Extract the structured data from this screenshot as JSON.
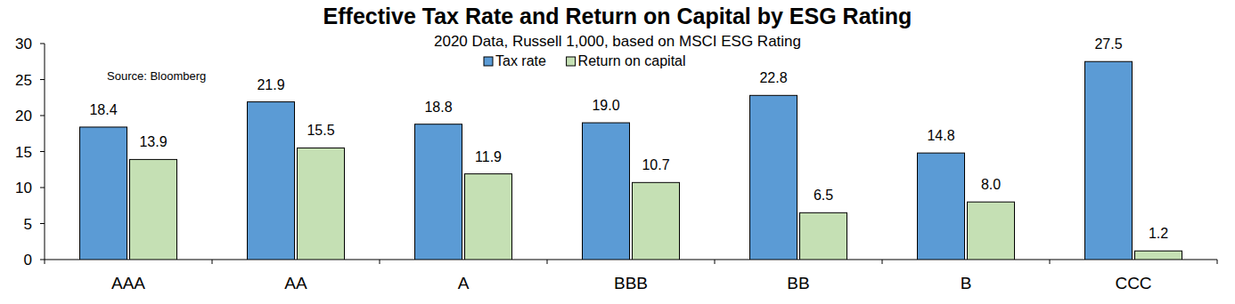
{
  "chart_data": {
    "type": "bar",
    "title": "Effective Tax Rate and Return on Capital by ESG Rating",
    "subtitle": "2020 Data, Russell 1,000, based on MSCI ESG Rating",
    "annotations": [
      "Source: Bloomberg"
    ],
    "categories": [
      "AAA",
      "AA",
      "A",
      "BBB",
      "BB",
      "B",
      "CCC"
    ],
    "series": [
      {
        "name": "Tax rate",
        "color": "#5b9bd5",
        "values": [
          18.4,
          21.9,
          18.8,
          19.0,
          22.8,
          14.8,
          27.5
        ],
        "value_labels": [
          "18.4",
          "21.9",
          "18.8",
          "19.0",
          "22.8",
          "14.8",
          "27.5"
        ]
      },
      {
        "name": "Return on capital",
        "color": "#c5e0b4",
        "values": [
          13.9,
          15.5,
          11.9,
          10.7,
          6.5,
          8.0,
          1.2
        ],
        "value_labels": [
          "13.9",
          "15.5",
          "11.9",
          "10.7",
          "6.5",
          "8.0",
          "1.2"
        ]
      }
    ],
    "ylim": [
      0,
      30
    ],
    "yticks": [
      0,
      5,
      10,
      15,
      20,
      25,
      30
    ],
    "grid": false,
    "legend": "top",
    "data_labels": true
  }
}
